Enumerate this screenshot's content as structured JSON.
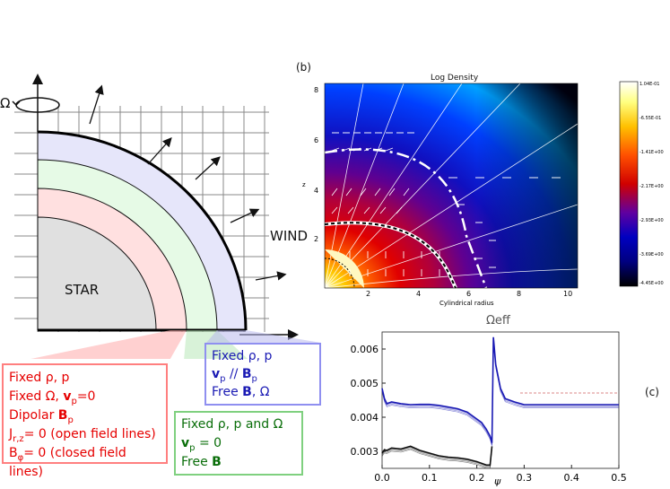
{
  "left_panel": {
    "omega_symbol": "Ω",
    "star_label": "STAR",
    "wind_label": "WIND"
  },
  "red_box": {
    "line1": "Fixed ρ, p",
    "line2_a": "Fixed Ω, ",
    "line2_v": "v",
    "line2_sub": "p",
    "line2_b": "=0",
    "line3_a": "Dipolar ",
    "line3_B": "B",
    "line3_sub": "p",
    "line4_a": "J",
    "line4_sub": "r,z",
    "line4_b": "= 0 (open field lines)",
    "line5_a": "B",
    "line5_sub": "φ",
    "line5_b": "= 0 (closed field lines)"
  },
  "blue_box": {
    "line1": "Fixed ρ, p",
    "line2_v": "v",
    "line2_sub1": "p",
    "line2_mid": " // ",
    "line2_B": "B",
    "line2_sub2": "p",
    "line3_a": "Free ",
    "line3_B": "B",
    "line3_b": ", Ω"
  },
  "green_box": {
    "line1": "Fixed ρ, p and Ω",
    "line2_v": "v",
    "line2_sub": "p",
    "line2_b": " = 0",
    "line3_a": "Free ",
    "line3_B": "B"
  },
  "panel_b": {
    "label": "(b)",
    "title": "Log Density",
    "xlabel": "Cylindrical radius",
    "ylabel": "z",
    "x_ticks": [
      "2",
      "4",
      "6",
      "8",
      "10"
    ],
    "y_ticks": [
      "2",
      "4",
      "6",
      "8"
    ],
    "colorbar_ticks": [
      "1.04E-01",
      "-6.55E-01",
      "-1.41E+00",
      "-2.17E+00",
      "-2.93E+00",
      "-3.69E+00",
      "-4.45E+00"
    ]
  },
  "panel_c": {
    "label": "(c)",
    "title": "Ωeff",
    "xlabel": "ψ",
    "x_ticks": [
      "0.0",
      "0.1",
      "0.2",
      "0.3",
      "0.4",
      "0.5"
    ],
    "y_ticks": [
      "0.006",
      "0.005",
      "0.004",
      "0.003"
    ]
  },
  "colors": {
    "red": "#e60000",
    "blue": "#1a1ab4",
    "green": "#0a6e0a",
    "star_fill": "#e0e0e0",
    "pink_layer": "#ffe0e0",
    "green_layer": "#e6fae6",
    "blue_layer": "#e6e6fa"
  },
  "chart_data": {
    "type": "line",
    "title": "Ωeff",
    "xlabel": "ψ",
    "ylabel": "",
    "xlim": [
      0.0,
      0.5
    ],
    "ylim": [
      0.0025,
      0.0065
    ],
    "series": [
      {
        "x": [
          0.0,
          0.005,
          0.01,
          0.02,
          0.04,
          0.06,
          0.08,
          0.1,
          0.12,
          0.14,
          0.16,
          0.18,
          0.2,
          0.21,
          0.22,
          0.228,
          0.232,
          0.235,
          0.24,
          0.25,
          0.26,
          0.28,
          0.3,
          0.35,
          0.4,
          0.45,
          0.5
        ],
        "y": [
          0.0048,
          0.0045,
          0.00435,
          0.0044,
          0.00435,
          0.00432,
          0.00433,
          0.00433,
          0.0043,
          0.00425,
          0.0042,
          0.0041,
          0.0039,
          0.0038,
          0.0036,
          0.0034,
          0.0032,
          0.0063,
          0.0055,
          0.0048,
          0.0045,
          0.0044,
          0.00432,
          0.00432,
          0.00432,
          0.00432,
          0.00432
        ]
      },
      {
        "x": [
          0.0,
          0.005,
          0.01,
          0.02,
          0.04,
          0.06,
          0.08,
          0.1,
          0.12,
          0.14,
          0.16,
          0.18,
          0.2,
          0.21,
          0.22,
          0.228,
          0.232
        ],
        "y": [
          0.0029,
          0.003,
          0.00298,
          0.00305,
          0.00302,
          0.0031,
          0.00298,
          0.0029,
          0.00282,
          0.00278,
          0.00276,
          0.00272,
          0.00265,
          0.0026,
          0.00255,
          0.00255,
          0.0031
        ]
      }
    ]
  }
}
